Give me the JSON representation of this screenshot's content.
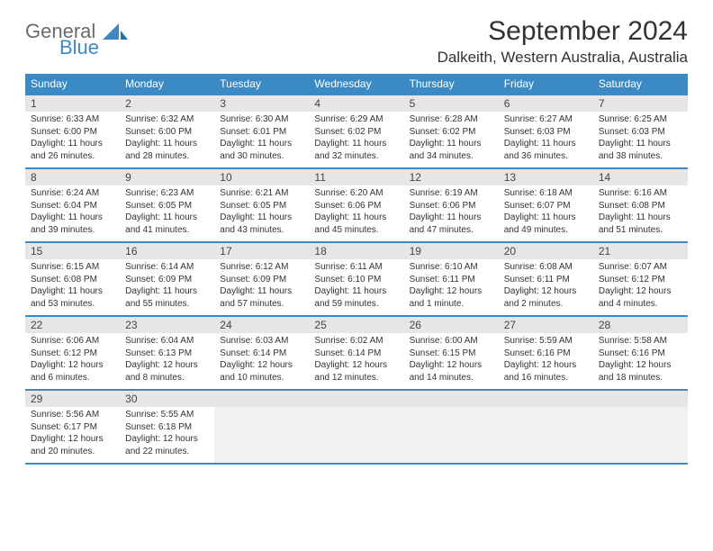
{
  "brand": {
    "name": "General",
    "sub": "Blue"
  },
  "title": "September 2024",
  "location": "Dalkeith, Western Australia, Australia",
  "colors": {
    "accent": "#3b8ac4",
    "header_band": "#e6e6e6",
    "text": "#333333",
    "logo_gray": "#6a6a6a"
  },
  "day_names": [
    "Sunday",
    "Monday",
    "Tuesday",
    "Wednesday",
    "Thursday",
    "Friday",
    "Saturday"
  ],
  "weeks": [
    [
      {
        "n": "1",
        "sr": "6:33 AM",
        "ss": "6:00 PM",
        "dl": "11 hours and 26 minutes."
      },
      {
        "n": "2",
        "sr": "6:32 AM",
        "ss": "6:00 PM",
        "dl": "11 hours and 28 minutes."
      },
      {
        "n": "3",
        "sr": "6:30 AM",
        "ss": "6:01 PM",
        "dl": "11 hours and 30 minutes."
      },
      {
        "n": "4",
        "sr": "6:29 AM",
        "ss": "6:02 PM",
        "dl": "11 hours and 32 minutes."
      },
      {
        "n": "5",
        "sr": "6:28 AM",
        "ss": "6:02 PM",
        "dl": "11 hours and 34 minutes."
      },
      {
        "n": "6",
        "sr": "6:27 AM",
        "ss": "6:03 PM",
        "dl": "11 hours and 36 minutes."
      },
      {
        "n": "7",
        "sr": "6:25 AM",
        "ss": "6:03 PM",
        "dl": "11 hours and 38 minutes."
      }
    ],
    [
      {
        "n": "8",
        "sr": "6:24 AM",
        "ss": "6:04 PM",
        "dl": "11 hours and 39 minutes."
      },
      {
        "n": "9",
        "sr": "6:23 AM",
        "ss": "6:05 PM",
        "dl": "11 hours and 41 minutes."
      },
      {
        "n": "10",
        "sr": "6:21 AM",
        "ss": "6:05 PM",
        "dl": "11 hours and 43 minutes."
      },
      {
        "n": "11",
        "sr": "6:20 AM",
        "ss": "6:06 PM",
        "dl": "11 hours and 45 minutes."
      },
      {
        "n": "12",
        "sr": "6:19 AM",
        "ss": "6:06 PM",
        "dl": "11 hours and 47 minutes."
      },
      {
        "n": "13",
        "sr": "6:18 AM",
        "ss": "6:07 PM",
        "dl": "11 hours and 49 minutes."
      },
      {
        "n": "14",
        "sr": "6:16 AM",
        "ss": "6:08 PM",
        "dl": "11 hours and 51 minutes."
      }
    ],
    [
      {
        "n": "15",
        "sr": "6:15 AM",
        "ss": "6:08 PM",
        "dl": "11 hours and 53 minutes."
      },
      {
        "n": "16",
        "sr": "6:14 AM",
        "ss": "6:09 PM",
        "dl": "11 hours and 55 minutes."
      },
      {
        "n": "17",
        "sr": "6:12 AM",
        "ss": "6:09 PM",
        "dl": "11 hours and 57 minutes."
      },
      {
        "n": "18",
        "sr": "6:11 AM",
        "ss": "6:10 PM",
        "dl": "11 hours and 59 minutes."
      },
      {
        "n": "19",
        "sr": "6:10 AM",
        "ss": "6:11 PM",
        "dl": "12 hours and 1 minute."
      },
      {
        "n": "20",
        "sr": "6:08 AM",
        "ss": "6:11 PM",
        "dl": "12 hours and 2 minutes."
      },
      {
        "n": "21",
        "sr": "6:07 AM",
        "ss": "6:12 PM",
        "dl": "12 hours and 4 minutes."
      }
    ],
    [
      {
        "n": "22",
        "sr": "6:06 AM",
        "ss": "6:12 PM",
        "dl": "12 hours and 6 minutes."
      },
      {
        "n": "23",
        "sr": "6:04 AM",
        "ss": "6:13 PM",
        "dl": "12 hours and 8 minutes."
      },
      {
        "n": "24",
        "sr": "6:03 AM",
        "ss": "6:14 PM",
        "dl": "12 hours and 10 minutes."
      },
      {
        "n": "25",
        "sr": "6:02 AM",
        "ss": "6:14 PM",
        "dl": "12 hours and 12 minutes."
      },
      {
        "n": "26",
        "sr": "6:00 AM",
        "ss": "6:15 PM",
        "dl": "12 hours and 14 minutes."
      },
      {
        "n": "27",
        "sr": "5:59 AM",
        "ss": "6:16 PM",
        "dl": "12 hours and 16 minutes."
      },
      {
        "n": "28",
        "sr": "5:58 AM",
        "ss": "6:16 PM",
        "dl": "12 hours and 18 minutes."
      }
    ],
    [
      {
        "n": "29",
        "sr": "5:56 AM",
        "ss": "6:17 PM",
        "dl": "12 hours and 20 minutes."
      },
      {
        "n": "30",
        "sr": "5:55 AM",
        "ss": "6:18 PM",
        "dl": "12 hours and 22 minutes."
      },
      null,
      null,
      null,
      null,
      null
    ]
  ],
  "labels": {
    "sunrise": "Sunrise:",
    "sunset": "Sunset:",
    "daylight": "Daylight:"
  }
}
